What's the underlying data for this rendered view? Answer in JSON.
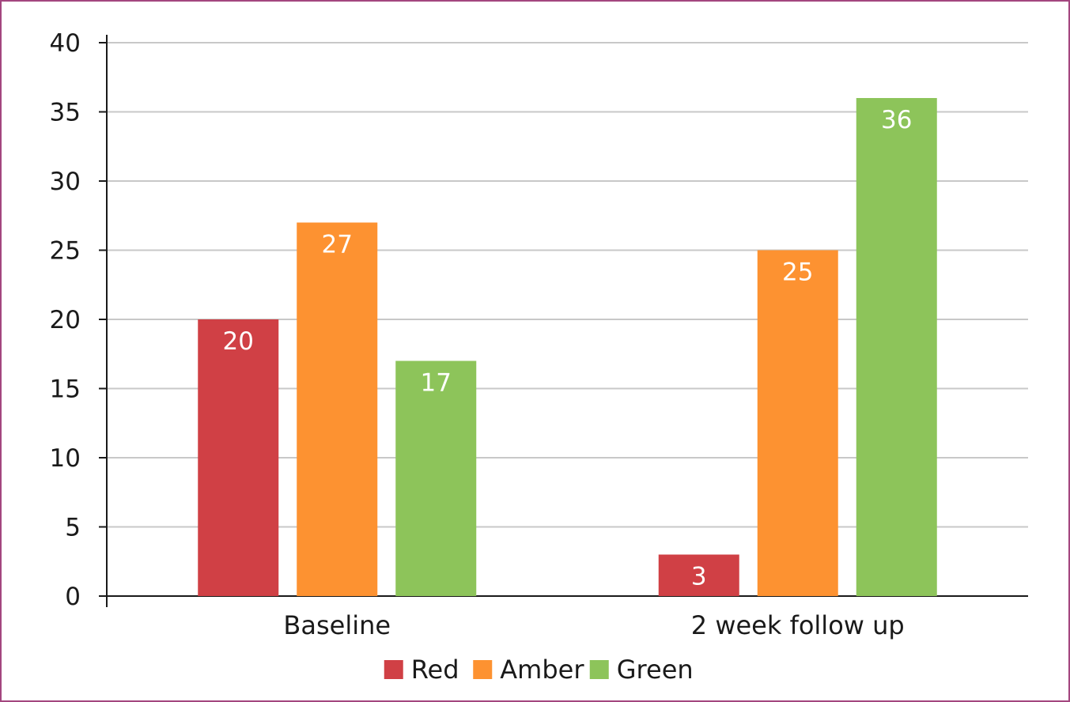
{
  "chart_data": {
    "type": "bar",
    "title": "",
    "xlabel": "",
    "ylabel": "",
    "categories": [
      "Baseline",
      "2 week follow up"
    ],
    "series": [
      {
        "name": "Red",
        "values": [
          20,
          3
        ],
        "color": "#d04045"
      },
      {
        "name": "Amber",
        "values": [
          27,
          25
        ],
        "color": "#fd9231"
      },
      {
        "name": "Green",
        "values": [
          17,
          36
        ],
        "color": "#8dc45a"
      }
    ],
    "ylim": [
      0,
      40
    ],
    "yticks": [
      0,
      5,
      10,
      15,
      20,
      25,
      30,
      35,
      40
    ],
    "grid": true,
    "legend_position": "bottom",
    "data_labels": true,
    "colors": {
      "grid": "#c8c8c8",
      "axis": "#1a1a1a",
      "border": "#a3467f"
    }
  }
}
